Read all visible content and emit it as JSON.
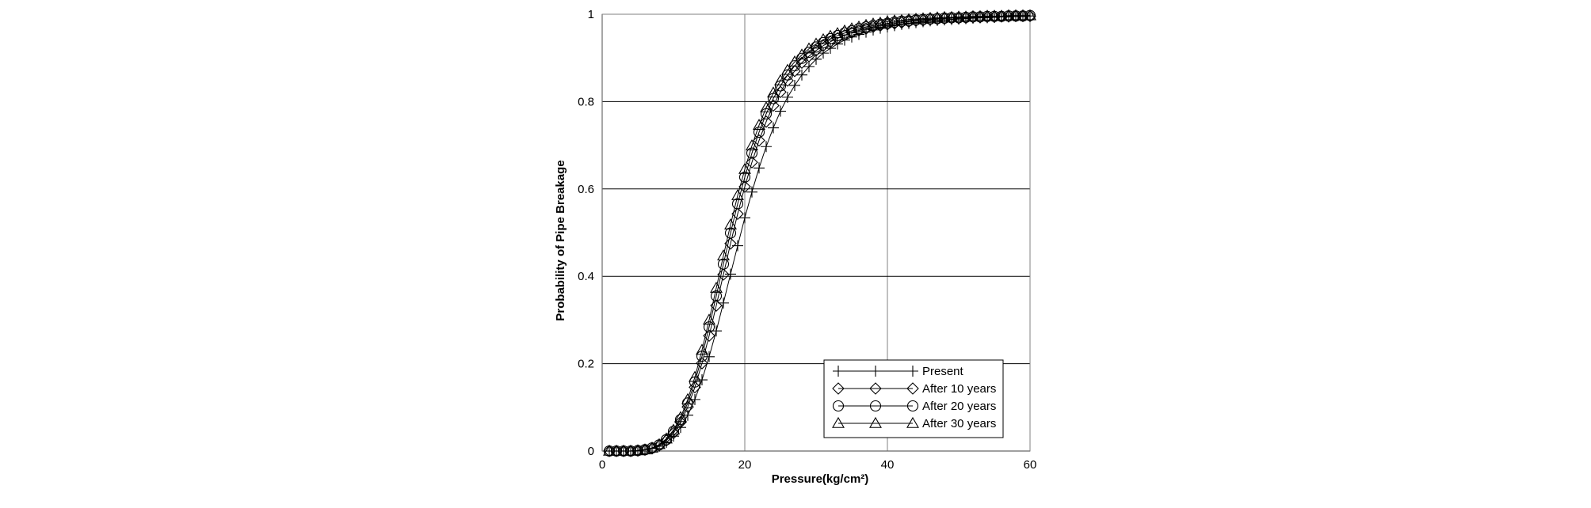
{
  "chart_data": {
    "type": "line",
    "title": "",
    "xlabel": "Pressure(kg/cm²)",
    "ylabel": "Probability of Pipe Breakage",
    "xlim": [
      0,
      60
    ],
    "ylim": [
      0,
      1
    ],
    "x_ticks": [
      0,
      20,
      40,
      60
    ],
    "y_ticks": [
      0,
      0.2,
      0.4,
      0.6,
      0.8,
      1
    ],
    "x_tick_labels": [
      "0",
      "20",
      "40",
      "60"
    ],
    "y_tick_labels": [
      "0",
      "0.2",
      "0.4",
      "0.6",
      "0.8",
      "1"
    ],
    "grid": true,
    "legend_position": "bottom-right",
    "x": [
      1,
      2,
      3,
      4,
      5,
      6,
      7,
      8,
      9,
      10,
      11,
      12,
      13,
      14,
      15,
      16,
      17,
      18,
      19,
      20,
      21,
      22,
      23,
      24,
      25,
      26,
      27,
      28,
      29,
      30,
      31,
      32,
      33,
      34,
      35,
      36,
      37,
      38,
      39,
      40,
      41,
      42,
      43,
      44,
      45,
      46,
      47,
      48,
      49,
      50,
      51,
      52,
      53,
      54,
      55,
      56,
      57,
      58,
      59,
      60
    ],
    "series": [
      {
        "name": "Present",
        "marker": "plus",
        "values": [
          0.0,
          0.0,
          0.0,
          0.0,
          0.001,
          0.003,
          0.006,
          0.011,
          0.02,
          0.034,
          0.054,
          0.082,
          0.118,
          0.163,
          0.216,
          0.275,
          0.339,
          0.405,
          0.47,
          0.534,
          0.593,
          0.648,
          0.697,
          0.74,
          0.778,
          0.81,
          0.837,
          0.861,
          0.88,
          0.897,
          0.911,
          0.922,
          0.932,
          0.941,
          0.948,
          0.954,
          0.959,
          0.964,
          0.968,
          0.971,
          0.974,
          0.977,
          0.979,
          0.981,
          0.983,
          0.985,
          0.986,
          0.987,
          0.988,
          0.989,
          0.99,
          0.991,
          0.992,
          0.992,
          0.993,
          0.994,
          0.994,
          0.995,
          0.995,
          0.996
        ]
      },
      {
        "name": "After 10 years",
        "marker": "diamond",
        "values": [
          0.0,
          0.0,
          0.0,
          0.0,
          0.001,
          0.003,
          0.006,
          0.013,
          0.024,
          0.041,
          0.066,
          0.101,
          0.146,
          0.201,
          0.264,
          0.333,
          0.404,
          0.475,
          0.543,
          0.605,
          0.661,
          0.711,
          0.754,
          0.791,
          0.822,
          0.848,
          0.87,
          0.889,
          0.904,
          0.917,
          0.928,
          0.937,
          0.945,
          0.952,
          0.958,
          0.963,
          0.967,
          0.971,
          0.974,
          0.977,
          0.979,
          0.981,
          0.983,
          0.985,
          0.986,
          0.988,
          0.989,
          0.99,
          0.991,
          0.991,
          0.992,
          0.993,
          0.993,
          0.994,
          0.994,
          0.995,
          0.995,
          0.996,
          0.996,
          0.996
        ]
      },
      {
        "name": "After 20 years",
        "marker": "circle",
        "values": [
          0.0,
          0.0,
          0.0,
          0.0,
          0.001,
          0.003,
          0.007,
          0.014,
          0.026,
          0.045,
          0.072,
          0.11,
          0.158,
          0.217,
          0.284,
          0.355,
          0.428,
          0.499,
          0.566,
          0.627,
          0.682,
          0.73,
          0.772,
          0.807,
          0.836,
          0.861,
          0.882,
          0.899,
          0.913,
          0.925,
          0.935,
          0.944,
          0.951,
          0.957,
          0.962,
          0.967,
          0.971,
          0.974,
          0.977,
          0.979,
          0.982,
          0.984,
          0.985,
          0.987,
          0.988,
          0.989,
          0.99,
          0.991,
          0.992,
          0.992,
          0.993,
          0.994,
          0.994,
          0.995,
          0.995,
          0.995,
          0.996,
          0.996,
          0.996,
          0.997
        ]
      },
      {
        "name": "After 30 years",
        "marker": "triangle",
        "values": [
          0.0,
          0.0,
          0.0,
          0.0,
          0.001,
          0.003,
          0.007,
          0.015,
          0.028,
          0.048,
          0.077,
          0.118,
          0.169,
          0.231,
          0.3,
          0.373,
          0.447,
          0.518,
          0.585,
          0.645,
          0.699,
          0.746,
          0.786,
          0.82,
          0.848,
          0.872,
          0.891,
          0.907,
          0.921,
          0.932,
          0.942,
          0.95,
          0.956,
          0.962,
          0.967,
          0.971,
          0.975,
          0.978,
          0.98,
          0.983,
          0.985,
          0.986,
          0.988,
          0.989,
          0.99,
          0.991,
          0.992,
          0.993,
          0.993,
          0.994,
          0.994,
          0.995,
          0.995,
          0.996,
          0.996,
          0.996,
          0.997,
          0.997,
          0.997,
          0.997
        ]
      }
    ]
  }
}
